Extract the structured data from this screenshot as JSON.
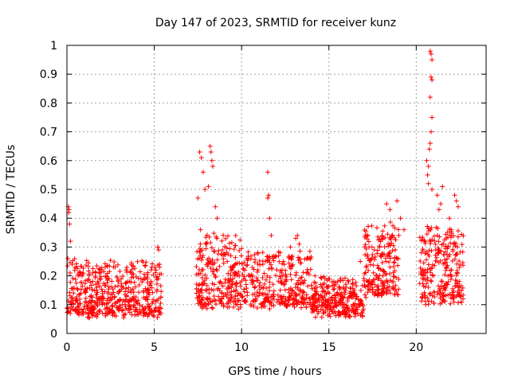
{
  "chart_data": {
    "type": "scatter",
    "title": "Day 147 of 2023, SRMTID for receiver kunz",
    "xlabel": "GPS time / hours",
    "ylabel": "SRMTID / TECUs",
    "xlim": [
      0,
      24
    ],
    "ylim": [
      0,
      1
    ],
    "xticks": [
      0,
      5,
      10,
      15,
      20
    ],
    "yticks": [
      0,
      0.1,
      0.2,
      0.3,
      0.4,
      0.5,
      0.6,
      0.7,
      0.8,
      0.9,
      1
    ],
    "grid": true,
    "marker": "+",
    "color": "#ff0000",
    "series": [
      {
        "name": "SRMTID",
        "segments": [
          {
            "range": [
              0.0,
              5.4
            ],
            "level": 0.1,
            "spread": 0.09,
            "count": 520
          },
          {
            "range": [
              7.4,
              10.0
            ],
            "level": 0.14,
            "spread": 0.12,
            "count": 260
          },
          {
            "range": [
              10.0,
              14.0
            ],
            "level": 0.13,
            "spread": 0.09,
            "count": 320
          },
          {
            "range": [
              14.0,
              17.0
            ],
            "level": 0.09,
            "spread": 0.06,
            "count": 280
          },
          {
            "range": [
              17.0,
              19.0
            ],
            "level": 0.18,
            "spread": 0.12,
            "count": 200
          },
          {
            "range": [
              20.2,
              22.7
            ],
            "level": 0.16,
            "spread": 0.13,
            "count": 260
          }
        ],
        "points": [
          [
            0.08,
            0.44
          ],
          [
            0.12,
            0.43
          ],
          [
            0.1,
            0.42
          ],
          [
            0.15,
            0.38
          ],
          [
            0.2,
            0.32
          ],
          [
            0.05,
            0.26
          ],
          [
            0.3,
            0.24
          ],
          [
            0.18,
            0.21
          ],
          [
            7.6,
            0.63
          ],
          [
            7.7,
            0.61
          ],
          [
            7.8,
            0.56
          ],
          [
            7.9,
            0.5
          ],
          [
            7.5,
            0.47
          ],
          [
            8.2,
            0.65
          ],
          [
            8.25,
            0.63
          ],
          [
            8.3,
            0.6
          ],
          [
            8.35,
            0.58
          ],
          [
            8.1,
            0.51
          ],
          [
            8.5,
            0.44
          ],
          [
            8.6,
            0.4
          ],
          [
            7.65,
            0.36
          ],
          [
            11.5,
            0.56
          ],
          [
            11.55,
            0.48
          ],
          [
            11.5,
            0.47
          ],
          [
            11.6,
            0.4
          ],
          [
            11.7,
            0.34
          ],
          [
            12.2,
            0.28
          ],
          [
            13.1,
            0.33
          ],
          [
            12.8,
            0.3
          ],
          [
            18.3,
            0.45
          ],
          [
            18.5,
            0.43
          ],
          [
            18.9,
            0.46
          ],
          [
            19.1,
            0.4
          ],
          [
            19.3,
            0.36
          ],
          [
            18.1,
            0.33
          ],
          [
            17.6,
            0.29
          ],
          [
            19.0,
            0.34
          ],
          [
            20.8,
            0.98
          ],
          [
            20.85,
            0.97
          ],
          [
            20.9,
            0.95
          ],
          [
            20.85,
            0.89
          ],
          [
            20.9,
            0.88
          ],
          [
            20.8,
            0.82
          ],
          [
            20.9,
            0.75
          ],
          [
            20.85,
            0.7
          ],
          [
            20.8,
            0.66
          ],
          [
            20.75,
            0.64
          ],
          [
            20.6,
            0.6
          ],
          [
            20.7,
            0.58
          ],
          [
            20.65,
            0.55
          ],
          [
            20.7,
            0.52
          ],
          [
            20.9,
            0.5
          ],
          [
            21.2,
            0.48
          ],
          [
            21.4,
            0.45
          ],
          [
            21.5,
            0.51
          ],
          [
            21.3,
            0.43
          ],
          [
            22.2,
            0.48
          ],
          [
            22.3,
            0.46
          ],
          [
            22.4,
            0.44
          ],
          [
            21.9,
            0.4
          ],
          [
            22.0,
            0.36
          ],
          [
            5.2,
            0.3
          ],
          [
            5.25,
            0.29
          ],
          [
            5.3,
            0.24
          ],
          [
            5.1,
            0.22
          ],
          [
            13.2,
            0.34
          ],
          [
            13.3,
            0.31
          ],
          [
            12.4,
            0.25
          ],
          [
            14.2,
            0.2
          ],
          [
            16.8,
            0.25
          ],
          [
            17.3,
            0.3
          ],
          [
            15.5,
            0.18
          ],
          [
            10.3,
            0.26
          ]
        ]
      }
    ]
  }
}
